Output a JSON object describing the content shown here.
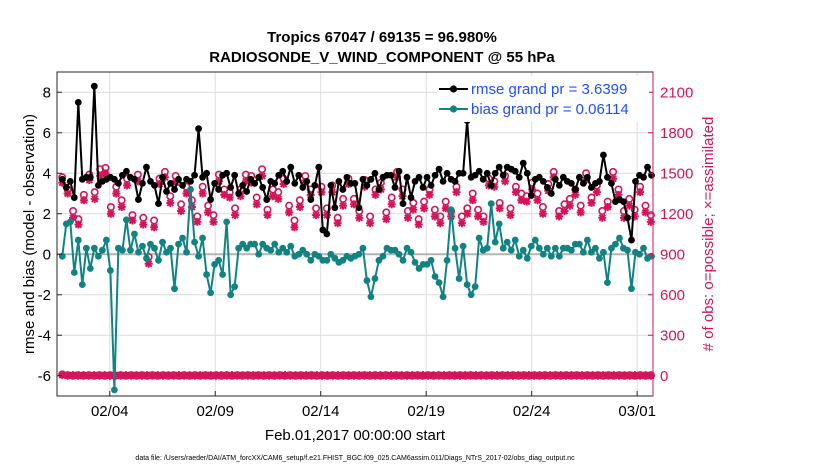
{
  "chart_data": {
    "type": "line",
    "title": "Tropics 67047 / 69135 = 96.980%",
    "subtitle": "RADIOSONDE_V_WIND_COMPONENT @ 55 hPa",
    "xlabel": "Feb.01,2017 00:00:00 start",
    "ylabel": "rmse and bias (model - observation)",
    "y2label": "# of obs: o=possible; ×=assimilated",
    "footnote": "data file: /Users/raeder/DAI/ATM_forcXX/CAM6_setup/f.e21.FHIST_BGC.f09_025.CAM6assim.011/Diags_NTrS_2017-02/obs_diag_output.nc",
    "xlim": [
      0.5,
      28.75
    ],
    "ylim": [
      -7,
      9
    ],
    "y2lim": [
      -150,
      2250
    ],
    "x_ticks": [
      3,
      8,
      13,
      18,
      23,
      28
    ],
    "x_tick_labels": [
      "02/04",
      "02/09",
      "02/14",
      "02/19",
      "02/24",
      "03/01"
    ],
    "y_ticks": [
      -6,
      -4,
      -2,
      0,
      2,
      4,
      6,
      8
    ],
    "y_tick_labels": [
      "-6",
      "-4",
      "-2",
      "0",
      "2",
      "4",
      "6",
      "8"
    ],
    "y2_ticks": [
      0,
      300,
      600,
      900,
      1200,
      1500,
      1800,
      2100
    ],
    "y2_tick_labels": [
      "0",
      "300",
      "600",
      "900",
      "1200",
      "1500",
      "1800",
      "2100"
    ],
    "grid": true,
    "legend_position": "top-right",
    "colors": {
      "rmse": "#000000",
      "bias": "#128383",
      "obs": "#d4145a",
      "zero_line": "#b4b4b4",
      "grid": "#dcdcdc",
      "legend_text": "#1f4fff"
    },
    "series": [
      {
        "name": "rmse grand pr = 3.6399",
        "key": "rmse",
        "values": [
          3.7,
          3.3,
          3.6,
          2.8,
          7.5,
          3.7,
          3.8,
          3.8,
          8.3,
          3.4,
          3.6,
          3.7,
          3.8,
          3.7,
          3.5,
          3.9,
          4.1,
          3.8,
          3.7,
          2.7,
          3.5,
          4.3,
          3.6,
          3.4,
          2.5,
          3.8,
          3.1,
          3.5,
          3.2,
          3.7,
          3.4,
          3.7,
          3.6,
          3.9,
          6.2,
          3.8,
          4.0,
          2.7,
          3.5,
          3.2,
          3.9,
          4.0,
          3.3,
          3.9,
          3.0,
          3.4,
          3.1,
          3.7,
          3.5,
          3.8,
          3.3,
          2.7,
          3.6,
          3.5,
          3.9,
          4.1,
          3.6,
          4.3,
          3.5,
          3.9,
          3.3,
          3.6,
          2.7,
          3.4,
          4.3,
          1.2,
          1.0,
          3.4,
          2.3,
          3.6,
          3.2,
          3.8,
          3.5,
          3.5,
          2.3,
          3.7,
          3.4,
          3.7,
          4.0,
          3.2,
          3.8,
          3.9,
          3.9,
          3.3,
          4.1,
          2.5,
          3.8,
          2.8,
          3.6,
          3.8,
          3.3,
          3.8,
          3.4,
          3.9,
          4.2,
          3.6,
          4.0,
          3.7,
          3.6,
          4.0,
          4.0,
          6.6,
          3.8,
          3.9,
          4.1,
          3.7,
          4.0,
          3.4,
          4.0,
          4.3,
          3.9,
          4.3,
          4.2,
          4.1,
          3.8,
          4.5,
          4.0,
          2.9,
          3.7,
          3.8,
          3.6,
          3.3,
          3.0,
          3.7,
          3.4,
          3.8,
          3.6,
          3.5,
          3.2,
          3.8,
          3.5,
          3.8,
          3.3,
          3.5,
          3.6,
          4.9,
          3.8,
          3.5,
          2.6,
          2.7,
          2.6,
          1.8,
          0.7,
          3.6,
          3.9,
          3.8,
          4.3,
          3.9
        ]
      },
      {
        "name": "bias grand pr = 0.06114",
        "key": "bias",
        "values": [
          -0.1,
          1.5,
          1.6,
          -0.9,
          0.7,
          -1.5,
          0.3,
          -0.7,
          0.3,
          -0.1,
          0.2,
          0.7,
          -0.8,
          -6.7,
          0.3,
          0.2,
          1.7,
          0.2,
          1.0,
          0.1,
          0.4,
          -0.2,
          0.5,
          0.3,
          -0.3,
          0.6,
          0.1,
          0.3,
          -1.7,
          0.5,
          0.8,
          0.1,
          3.2,
          0.6,
          -0.1,
          0.8,
          -1.0,
          -1.9,
          -0.5,
          -0.3,
          -1.0,
          1.6,
          -2.0,
          -1.6,
          0.3,
          0.5,
          0.3,
          0.5,
          0.5,
          0.0,
          0.5,
          0.3,
          0.2,
          0.5,
          0.1,
          0.3,
          0.1,
          0.4,
          -0.1,
          0.0,
          0.2,
          0.0,
          -0.3,
          0.0,
          -0.1,
          -0.3,
          -0.3,
          0.0,
          -0.2,
          -0.4,
          -0.3,
          -0.1,
          -0.2,
          -0.1,
          0.0,
          0.3,
          -1.3,
          -2.1,
          -1.2,
          -0.3,
          -0.1,
          0.3,
          0.2,
          0.2,
          0.0,
          -0.3,
          0.3,
          0.1,
          -0.4,
          -0.7,
          -0.5,
          -0.5,
          -0.3,
          -1.1,
          -1.4,
          -2.1,
          -0.3,
          2.2,
          0.3,
          -1.2,
          0.4,
          -1.5,
          -2.0,
          -1.6,
          0.8,
          0.2,
          0.3,
          2.5,
          0.6,
          1.5,
          0.3,
          0.6,
          0.2,
          0.7,
          -0.1,
          0.2,
          -0.2,
          0.4,
          0.7,
          0.3,
          0.0,
          0.3,
          -0.1,
          0.3,
          -0.1,
          0.3,
          0.3,
          0.2,
          0.5,
          0.5,
          0.1,
          0.7,
          0.1,
          0.3,
          -0.2,
          0.1,
          -1.4,
          0.3,
          0.5,
          0.8,
          0.3,
          0.2,
          -1.7,
          0.1,
          0.0,
          0.3,
          -0.2,
          -0.1
        ]
      }
    ],
    "obs_possible": [
      1470,
      1380,
      1220,
      1160,
      1340,
      1490,
      1360,
      1530,
      1540,
      1250,
      1400,
      1300,
      1460,
      1190,
      1490,
      1170,
      880,
      1150,
      1460,
      1510,
      1330,
      1480,
      1270,
      1400,
      1300,
      1180,
      1400,
      1260,
      1190,
      1490,
      1380,
      1360,
      1240,
      1380,
      1490,
      1480,
      1320,
      1530,
      1230,
      1380,
      1360,
      1460,
      1260,
      1150,
      1300,
      1480,
      1380,
      1240,
      1400,
      1240,
      1410,
      1170,
      1310,
      1460,
      1310,
      1220,
      1450,
      1180,
      1380,
      1430,
      1210,
      1320,
      1510,
      1380,
      1220,
      1280,
      1160,
      1290,
      1380,
      1230,
      1180,
      1290,
      1220,
      1400,
      1180,
      1240,
      1350,
      1230,
      1180,
      1460,
      1440,
      1280,
      1480,
      1240,
      1400,
      1350,
      1330,
      1430,
      1350,
      1250,
      1420,
      1510,
      1220,
      1270,
      1310,
      1380,
      1260,
      1500,
      1320,
      1410,
      1220,
      1290,
      1510,
      1380,
      1220,
      1310,
      1230,
      1400,
      1260,
      1190
    ],
    "obs_assimilated": [
      1430,
      1350,
      1170,
      1120,
      1300,
      1450,
      1310,
      1480,
      1500,
      1200,
      1350,
      1250,
      1410,
      1150,
      1440,
      1120,
      830,
      1100,
      1420,
      1470,
      1280,
      1430,
      1220,
      1350,
      1250,
      1140,
      1350,
      1210,
      1140,
      1440,
      1340,
      1320,
      1190,
      1330,
      1440,
      1430,
      1270,
      1480,
      1190,
      1330,
      1310,
      1420,
      1210,
      1100,
      1250,
      1430,
      1340,
      1190,
      1360,
      1190,
      1360,
      1130,
      1260,
      1420,
      1270,
      1170,
      1400,
      1130,
      1340,
      1380,
      1160,
      1270,
      1470,
      1330,
      1170,
      1230,
      1120,
      1240,
      1340,
      1180,
      1130,
      1240,
      1180,
      1360,
      1130,
      1200,
      1300,
      1180,
      1140,
      1410,
      1400,
      1240,
      1440,
      1190,
      1360,
      1300,
      1290,
      1380,
      1300,
      1200,
      1370,
      1470,
      1180,
      1220,
      1260,
      1340,
      1210,
      1450,
      1280,
      1360,
      1170,
      1250,
      1460,
      1340,
      1170,
      1260,
      1180,
      1360,
      1210,
      1140
    ],
    "obs_zero_possible": [
      10,
      5,
      0,
      5,
      0,
      5,
      0,
      5,
      0,
      5,
      0,
      5,
      0,
      5,
      0,
      5,
      0,
      5,
      0,
      5,
      0,
      5,
      0,
      5,
      0,
      5,
      0,
      5,
      0,
      5,
      0,
      5,
      0,
      5,
      0,
      5,
      0,
      5,
      0,
      5,
      0,
      5,
      0,
      5,
      0,
      5,
      0,
      5,
      0,
      5,
      0,
      5,
      0,
      5,
      0,
      5,
      0,
      5,
      0,
      5,
      0,
      5,
      0,
      5,
      0,
      5,
      0,
      5,
      0,
      5,
      0,
      5,
      0,
      5,
      0,
      5,
      0,
      5,
      0,
      5,
      0,
      5,
      0,
      5,
      0,
      5,
      0,
      5,
      0,
      5,
      0,
      5,
      0,
      5,
      0,
      5,
      0,
      5,
      0,
      5,
      0,
      5,
      0,
      5,
      0,
      5,
      0,
      5,
      0,
      5,
      0,
      5
    ],
    "obs_zero_assimilated": [
      5,
      0,
      5,
      0,
      5,
      0,
      5,
      0,
      5,
      0,
      5,
      0,
      5,
      0,
      5,
      0,
      5,
      0,
      5,
      0,
      5,
      0,
      5,
      0,
      5,
      0,
      5,
      0,
      5,
      0,
      5,
      0,
      5,
      0,
      5,
      0,
      5,
      0,
      5,
      0,
      5,
      0,
      5,
      0,
      5,
      0,
      5,
      0,
      5,
      0,
      5,
      0,
      5,
      0,
      5,
      0,
      5,
      0,
      5,
      0,
      5,
      0,
      5,
      0,
      5,
      0,
      5,
      0,
      5,
      0,
      5,
      0,
      5,
      0,
      5,
      0,
      5,
      0,
      5,
      0,
      5,
      0,
      5,
      0,
      5,
      0,
      5,
      0,
      5,
      0,
      5,
      0,
      5,
      0,
      5,
      0,
      5,
      0,
      5,
      0,
      5,
      0,
      5,
      0,
      5,
      0,
      5,
      0,
      5,
      0,
      5,
      0
    ]
  }
}
